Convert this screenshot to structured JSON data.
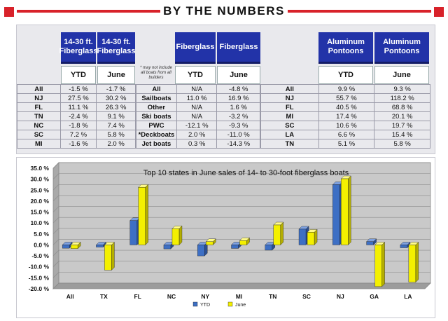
{
  "header": {
    "title": "BY THE NUMBERS"
  },
  "note": "* may not include all boats from all builders",
  "sections": [
    {
      "kind": "fiberglass-14-30",
      "col_headers": [
        "14-30 ft. Fiberglass",
        "14-30 ft. Fiberglass"
      ],
      "sub_headers": [
        "YTD",
        "June"
      ],
      "rows": [
        {
          "label": "All",
          "ytd": "-1.5 %",
          "june": "-1.7 %"
        },
        {
          "label": "NJ",
          "ytd": "27.5 %",
          "june": "30.2 %"
        },
        {
          "label": "FL",
          "ytd": "11.1 %",
          "june": "26.3 %"
        },
        {
          "label": "TN",
          "ytd": "-2.4 %",
          "june": "9.1 %"
        },
        {
          "label": "NC",
          "ytd": "-1.8 %",
          "june": "7.4 %"
        },
        {
          "label": "SC",
          "ytd": "7.2 %",
          "june": "5.8 %"
        },
        {
          "label": "MI",
          "ytd": "-1.6 %",
          "june": "2.0 %"
        }
      ]
    },
    {
      "kind": "fiberglass",
      "col_headers": [
        "Fiberglass",
        "Fiberglass"
      ],
      "sub_headers": [
        "YTD",
        "June"
      ],
      "rows": [
        {
          "label": "All",
          "ytd": "N/A",
          "june": "-4.8 %"
        },
        {
          "label": "Sailboats",
          "ytd": "11.0 %",
          "june": "16.9 %"
        },
        {
          "label": "Other",
          "ytd": "N/A",
          "june": "1.6 %"
        },
        {
          "label": "Ski boats",
          "ytd": "N/A",
          "june": "-3.2 %"
        },
        {
          "label": "PWC",
          "ytd": "-12.1 %",
          "june": "-9.3 %"
        },
        {
          "label": "*Deckboats",
          "ytd": "2.0 %",
          "june": "-11.0 %"
        },
        {
          "label": "Jet boats",
          "ytd": "0.3 %",
          "june": "-14.3 %"
        }
      ]
    },
    {
      "kind": "aluminum",
      "col_headers": [
        "Aluminum Pontoons",
        "Aluminum Pontoons"
      ],
      "sub_headers": [
        "YTD",
        "June"
      ],
      "rows": [
        {
          "label": "All",
          "ytd": "9.9 %",
          "june": "9.3 %"
        },
        {
          "label": "NJ",
          "ytd": "55.7 %",
          "june": "118.2 %"
        },
        {
          "label": "FL",
          "ytd": "40.5 %",
          "june": "68.8 %"
        },
        {
          "label": "MI",
          "ytd": "17.4 %",
          "june": "20.1 %"
        },
        {
          "label": "SC",
          "ytd": "10.6 %",
          "june": "19.7 %"
        },
        {
          "label": "LA",
          "ytd": "6.6 %",
          "june": "15.4 %"
        },
        {
          "label": "TN",
          "ytd": "5.1 %",
          "june": "5.8 %"
        }
      ]
    }
  ],
  "colors": {
    "accent_red": "#d8222a",
    "header_blue": "#2233a8",
    "ytd": "#3d6fc4",
    "june": "#f4f000"
  },
  "chart_data": {
    "type": "bar",
    "title": "Top 10 states in June sales of 14- to 30-foot fiberglass boats",
    "categories": [
      "All",
      "TX",
      "FL",
      "NC",
      "NY",
      "MI",
      "TN",
      "SC",
      "NJ",
      "GA",
      "LA"
    ],
    "series": [
      {
        "name": "YTD",
        "values": [
          -1.5,
          -1.0,
          11.1,
          -1.8,
          -5.0,
          -1.6,
          -2.4,
          7.2,
          27.5,
          1.5,
          -1.3
        ]
      },
      {
        "name": "June",
        "values": [
          -1.7,
          -11.5,
          26.3,
          7.4,
          1.5,
          2.0,
          9.1,
          5.8,
          30.2,
          -19.0,
          -17.0
        ]
      }
    ],
    "ylim": [
      -20,
      35
    ],
    "yticks": [
      "35.0 %",
      "30.0 %",
      "25.0 %",
      "20.0 %",
      "15.0 %",
      "10.0 %",
      "5.0 %",
      "0.0 %",
      "-5.0 %",
      "-10.0 %",
      "-15.0 %",
      "-20.0 %"
    ],
    "grid": true,
    "legend": "bottom"
  }
}
